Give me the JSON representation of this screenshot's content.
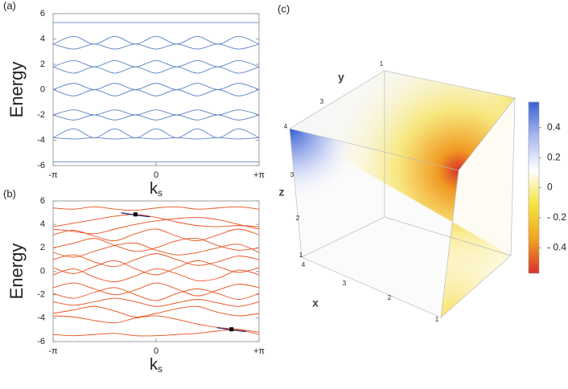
{
  "chart_data": [
    {
      "type": "line",
      "panel_label": "(a)",
      "ylabel": "Energy",
      "xlabel": "k",
      "xlabel_subscript": "s",
      "x": [
        -3.1416,
        -2.5133,
        -1.885,
        -1.2566,
        -0.6283,
        0,
        0.6283,
        1.2566,
        1.885,
        2.5133,
        3.1416
      ],
      "xlim": [
        -3.1416,
        3.1416
      ],
      "xticks": [
        {
          "value": -3.1416,
          "label": "-π"
        },
        0,
        {
          "value": 3.1416,
          "label": "+π"
        }
      ],
      "ylim": [
        -6,
        6
      ],
      "yticks": [
        -6,
        -4,
        -2,
        0,
        2,
        4,
        6
      ],
      "grid": false,
      "series": [
        {
          "color": "#5b84c4",
          "values": [
            5.3,
            5.3,
            5.3,
            5.3,
            5.3,
            5.3,
            5.3,
            5.3,
            5.3,
            5.3,
            5.3
          ]
        },
        {
          "color": "#5b84c4",
          "values": [
            3.6,
            4.2,
            3.6,
            4.2,
            3.6,
            4.2,
            3.6,
            4.2,
            3.6,
            4.2,
            3.6
          ]
        },
        {
          "color": "#5b84c4",
          "values": [
            3.6,
            3.2,
            3.6,
            3.2,
            3.6,
            3.2,
            3.6,
            3.2,
            3.6,
            3.2,
            3.6
          ]
        },
        {
          "color": "#5b84c4",
          "values": [
            1.8,
            2.3,
            1.8,
            2.3,
            1.8,
            2.3,
            1.8,
            2.3,
            1.8,
            2.3,
            1.8
          ]
        },
        {
          "color": "#5b84c4",
          "values": [
            1.8,
            1.3,
            1.8,
            1.3,
            1.8,
            1.3,
            1.8,
            1.3,
            1.8,
            1.3,
            1.8
          ]
        },
        {
          "color": "#5b84c4",
          "values": [
            0,
            0.5,
            0,
            0.5,
            0,
            0.5,
            0,
            0.5,
            0,
            0.5,
            0
          ]
        },
        {
          "color": "#5b84c4",
          "values": [
            0,
            -0.5,
            0,
            -0.5,
            0,
            -0.5,
            0,
            -0.5,
            0,
            -0.5,
            0
          ]
        },
        {
          "color": "#5b84c4",
          "values": [
            -2,
            -1.6,
            -2,
            -1.6,
            -2,
            -1.6,
            -2,
            -1.6,
            -2,
            -1.6,
            -2
          ]
        },
        {
          "color": "#5b84c4",
          "values": [
            -2,
            -2.4,
            -2,
            -2.4,
            -2,
            -2.4,
            -2,
            -2.4,
            -2,
            -2.4,
            -2
          ]
        },
        {
          "color": "#5b84c4",
          "values": [
            -3.8,
            -3.1,
            -3.8,
            -3.1,
            -3.8,
            -3.1,
            -3.8,
            -3.1,
            -3.8,
            -3.1,
            -3.8
          ]
        },
        {
          "color": "#5b84c4",
          "values": [
            -3.8,
            -3.9,
            -3.8,
            -3.9,
            -3.8,
            -3.9,
            -3.8,
            -3.9,
            -3.8,
            -3.9,
            -3.8
          ]
        },
        {
          "color": "#5b84c4",
          "values": [
            -5.7,
            -5.7,
            -5.7,
            -5.7,
            -5.7,
            -5.7,
            -5.7,
            -5.7,
            -5.7,
            -5.7,
            -5.7
          ]
        }
      ]
    },
    {
      "type": "line",
      "panel_label": "(b)",
      "ylabel": "Energy",
      "xlabel": "k",
      "xlabel_subscript": "s",
      "x": [
        -3.1416,
        -2.5133,
        -1.885,
        -1.2566,
        -0.6283,
        0,
        0.6283,
        1.2566,
        1.885,
        2.5133,
        3.1416
      ],
      "xlim": [
        -3.1416,
        3.1416
      ],
      "xticks": [
        {
          "value": -3.1416,
          "label": "-π"
        },
        0,
        {
          "value": 3.1416,
          "label": "+π"
        }
      ],
      "ylim": [
        -6,
        6
      ],
      "yticks": [
        -6,
        -4,
        -2,
        0,
        2,
        4,
        6
      ],
      "grid": false,
      "series": [
        {
          "color": "#e8501c",
          "values": [
            5.4,
            5.3,
            5.5,
            5.3,
            5.2,
            5.4,
            5.5,
            5.3,
            5.4,
            5.5,
            5.3
          ]
        },
        {
          "color": "#e8501c",
          "values": [
            3.8,
            4.1,
            4.4,
            4.7,
            4.85,
            4.6,
            4.2,
            3.9,
            3.8,
            3.9,
            3.8
          ]
        },
        {
          "color": "#e8501c",
          "values": [
            3.6,
            3.4,
            3.2,
            3.6,
            4.0,
            4.3,
            4.5,
            4.6,
            4.4,
            4.0,
            3.6
          ]
        },
        {
          "color": "#e8501c",
          "values": [
            3.1,
            3.5,
            3.0,
            2.6,
            3.2,
            3.6,
            3.0,
            2.6,
            3.1,
            3.6,
            3.1
          ]
        },
        {
          "color": "#e8501c",
          "values": [
            2.0,
            2.4,
            2.8,
            2.2,
            1.7,
            2.0,
            2.6,
            2.8,
            2.2,
            1.8,
            2.0
          ]
        },
        {
          "color": "#e8501c",
          "values": [
            1.6,
            1.2,
            1.7,
            2.2,
            2.4,
            1.8,
            1.4,
            1.6,
            2.0,
            2.3,
            1.6
          ]
        },
        {
          "color": "#e8501c",
          "values": [
            1.0,
            1.4,
            0.8,
            0.4,
            1.0,
            1.5,
            1.0,
            0.5,
            0.8,
            1.3,
            1.0
          ]
        },
        {
          "color": "#e8501c",
          "values": [
            0.3,
            -0.2,
            0.4,
            0.9,
            0.2,
            -0.3,
            0.3,
            0.9,
            0.4,
            -0.1,
            0.3
          ]
        },
        {
          "color": "#e8501c",
          "values": [
            -0.3,
            0.2,
            -0.5,
            -0.9,
            -0.4,
            0.2,
            -0.2,
            -0.8,
            -0.6,
            0.1,
            -0.3
          ]
        },
        {
          "color": "#e8501c",
          "values": [
            -1.4,
            -1.0,
            -1.5,
            -2.0,
            -1.6,
            -1.0,
            -1.5,
            -2.1,
            -1.6,
            -1.1,
            -1.4
          ]
        },
        {
          "color": "#e8501c",
          "values": [
            -1.9,
            -2.3,
            -1.8,
            -1.4,
            -2.0,
            -2.5,
            -1.9,
            -1.5,
            -1.9,
            -2.4,
            -1.9
          ]
        },
        {
          "color": "#e8501c",
          "values": [
            -2.6,
            -2.9,
            -2.6,
            -2.3,
            -2.6,
            -3.0,
            -2.7,
            -2.4,
            -2.7,
            -3.0,
            -2.6
          ]
        },
        {
          "color": "#e8501c",
          "values": [
            -3.6,
            -3.3,
            -3.0,
            -3.4,
            -3.9,
            -3.6,
            -3.2,
            -3.0,
            -3.5,
            -3.8,
            -3.6
          ]
        },
        {
          "color": "#e8501c",
          "values": [
            -3.8,
            -3.9,
            -4.2,
            -4.4,
            -4.0,
            -3.8,
            -4.1,
            -4.5,
            -4.8,
            -4.95,
            -5.2
          ]
        },
        {
          "color": "#e8501c",
          "values": [
            -5.4,
            -5.5,
            -5.4,
            -5.3,
            -5.5,
            -5.5,
            -5.4,
            -5.3,
            -5.1,
            -5.0,
            -5.4
          ]
        }
      ],
      "markers": {
        "x": [
          -0.63,
          2.3
        ],
        "values": [
          4.85,
          -4.95
        ],
        "color": "#000000"
      }
    },
    {
      "type": "cube",
      "panel_label": "(c)",
      "x_axis_label": "x",
      "y_axis_label": "y",
      "z_axis_label": "z",
      "x_ticks": [
        4,
        3,
        2,
        1
      ],
      "y_ticks": [
        4,
        3,
        1
      ],
      "z_ticks": [
        3,
        2,
        1
      ],
      "colormap": [
        "#3a62d6",
        "#a9b9ef",
        "#ffffff",
        "#f6e33c",
        "#f0a423",
        "#d8312a"
      ],
      "clim": [
        -0.57,
        0.57
      ],
      "cticks": [
        0.4,
        0.2,
        0,
        {
          "value": -0.2,
          "label": "- 0.2"
        },
        {
          "value": -0.4,
          "label": "- 0.4"
        }
      ]
    }
  ]
}
